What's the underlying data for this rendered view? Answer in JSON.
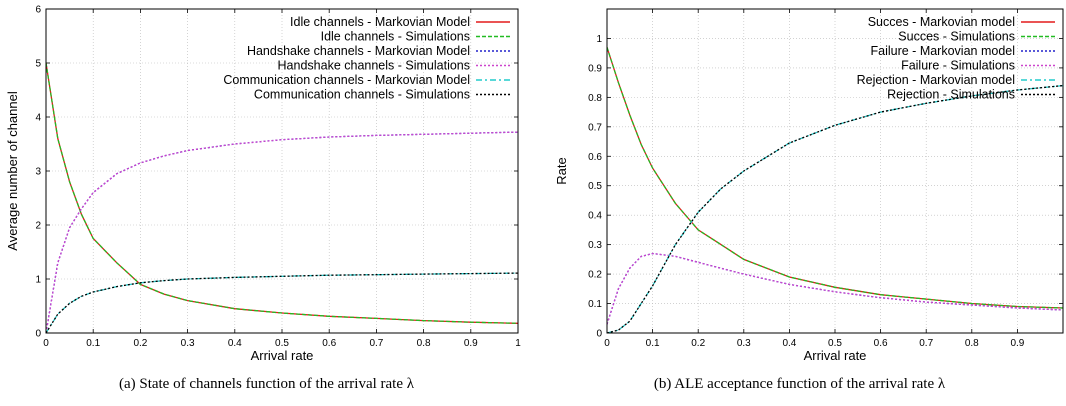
{
  "chart_data": [
    {
      "type": "line",
      "xlabel": "Arrival rate",
      "ylabel": "Average number of channel",
      "xlim": [
        0,
        1
      ],
      "ylim": [
        0,
        6
      ],
      "x_ticks": [
        "0",
        "0.1",
        "0.2",
        "0.3",
        "0.4",
        "0.5",
        "0.6",
        "0.7",
        "0.8",
        "0.9",
        "1"
      ],
      "y_ticks": [
        "0",
        "1",
        "2",
        "3",
        "4",
        "5",
        "6"
      ],
      "grid": true,
      "legend": "top-right",
      "caption": "(a)  State of channels function of the arrival rate λ",
      "x": [
        0,
        0.025,
        0.05,
        0.075,
        0.1,
        0.15,
        0.2,
        0.25,
        0.3,
        0.4,
        0.5,
        0.6,
        0.7,
        0.8,
        0.9,
        1.0
      ],
      "series": [
        {
          "name": "Idle channels - Markovian Model",
          "color": "#e41a1c",
          "dash": "",
          "values": [
            5.0,
            3.6,
            2.8,
            2.2,
            1.75,
            1.3,
            0.9,
            0.72,
            0.6,
            0.45,
            0.37,
            0.31,
            0.27,
            0.23,
            0.2,
            0.18
          ]
        },
        {
          "name": "Idle channels - Simulations",
          "color": "#22bb22",
          "dash": "4,2",
          "values": [
            5.0,
            3.6,
            2.8,
            2.2,
            1.75,
            1.3,
            0.9,
            0.72,
            0.6,
            0.45,
            0.37,
            0.31,
            0.27,
            0.23,
            0.2,
            0.18
          ]
        },
        {
          "name": "Handshake channels - Markovian Model",
          "color": "#2222cc",
          "dash": "2,2",
          "values": [
            0,
            1.3,
            1.95,
            2.3,
            2.6,
            2.95,
            3.15,
            3.28,
            3.38,
            3.5,
            3.58,
            3.63,
            3.66,
            3.68,
            3.7,
            3.72
          ]
        },
        {
          "name": "Handshake channels - Simulations",
          "color": "#cc44cc",
          "dash": "2,2",
          "values": [
            0,
            1.3,
            1.95,
            2.3,
            2.6,
            2.95,
            3.15,
            3.28,
            3.38,
            3.5,
            3.58,
            3.63,
            3.66,
            3.68,
            3.7,
            3.72
          ]
        },
        {
          "name": "Communication channels - Markovian Model",
          "color": "#22cccc",
          "dash": "6,3,2,3",
          "values": [
            0,
            0.35,
            0.55,
            0.68,
            0.76,
            0.86,
            0.93,
            0.97,
            1.0,
            1.03,
            1.05,
            1.07,
            1.08,
            1.09,
            1.1,
            1.11
          ]
        },
        {
          "name": "Communication channels - Simulations",
          "color": "#000000",
          "dash": "2,2",
          "values": [
            0,
            0.35,
            0.55,
            0.68,
            0.76,
            0.86,
            0.93,
            0.97,
            1.0,
            1.03,
            1.05,
            1.07,
            1.08,
            1.09,
            1.1,
            1.11
          ]
        }
      ]
    },
    {
      "type": "line",
      "xlabel": "Arrival rate",
      "ylabel": "Rate",
      "xlim": [
        0,
        1
      ],
      "ylim": [
        0,
        1.1
      ],
      "x_ticks": [
        "0",
        "0.1",
        "0.2",
        "0.3",
        "0.4",
        "0.5",
        "0.6",
        "0.7",
        "0.8",
        "0.9"
      ],
      "y_ticks": [
        "0",
        "0.1",
        "0.2",
        "0.3",
        "0.4",
        "0.5",
        "0.6",
        "0.7",
        "0.8",
        "0.9",
        "1"
      ],
      "grid": true,
      "legend": "top-right",
      "caption": "(b)  ALE acceptance function of the arrival rate λ",
      "x": [
        0,
        0.025,
        0.05,
        0.075,
        0.1,
        0.15,
        0.2,
        0.25,
        0.3,
        0.4,
        0.5,
        0.6,
        0.7,
        0.8,
        0.9,
        1.0
      ],
      "series": [
        {
          "name": "Succes - Markovian model",
          "color": "#e41a1c",
          "dash": "",
          "values": [
            0.97,
            0.85,
            0.74,
            0.64,
            0.56,
            0.44,
            0.35,
            0.3,
            0.25,
            0.19,
            0.155,
            0.13,
            0.115,
            0.1,
            0.09,
            0.085
          ]
        },
        {
          "name": "Succes - Simulations",
          "color": "#22bb22",
          "dash": "4,2",
          "values": [
            0.97,
            0.85,
            0.74,
            0.64,
            0.56,
            0.44,
            0.35,
            0.3,
            0.25,
            0.19,
            0.155,
            0.13,
            0.115,
            0.1,
            0.09,
            0.085
          ]
        },
        {
          "name": "Failure - Markovian model",
          "color": "#2222cc",
          "dash": "2,2",
          "values": [
            0.03,
            0.15,
            0.22,
            0.26,
            0.27,
            0.26,
            0.24,
            0.22,
            0.2,
            0.165,
            0.14,
            0.12,
            0.105,
            0.095,
            0.085,
            0.078
          ]
        },
        {
          "name": "Failure - Simulations",
          "color": "#cc44cc",
          "dash": "2,2",
          "values": [
            0.03,
            0.15,
            0.22,
            0.26,
            0.27,
            0.26,
            0.24,
            0.22,
            0.2,
            0.165,
            0.14,
            0.12,
            0.105,
            0.095,
            0.085,
            0.078
          ]
        },
        {
          "name": "Rejection - Markovian model",
          "color": "#22cccc",
          "dash": "6,3,2,3",
          "values": [
            0,
            0.01,
            0.04,
            0.1,
            0.16,
            0.3,
            0.41,
            0.49,
            0.55,
            0.645,
            0.705,
            0.75,
            0.78,
            0.805,
            0.825,
            0.84
          ]
        },
        {
          "name": "Rejection - Simulations",
          "color": "#000000",
          "dash": "2,2",
          "values": [
            0,
            0.01,
            0.04,
            0.1,
            0.16,
            0.3,
            0.41,
            0.49,
            0.55,
            0.645,
            0.705,
            0.75,
            0.78,
            0.805,
            0.825,
            0.84
          ]
        }
      ]
    }
  ]
}
